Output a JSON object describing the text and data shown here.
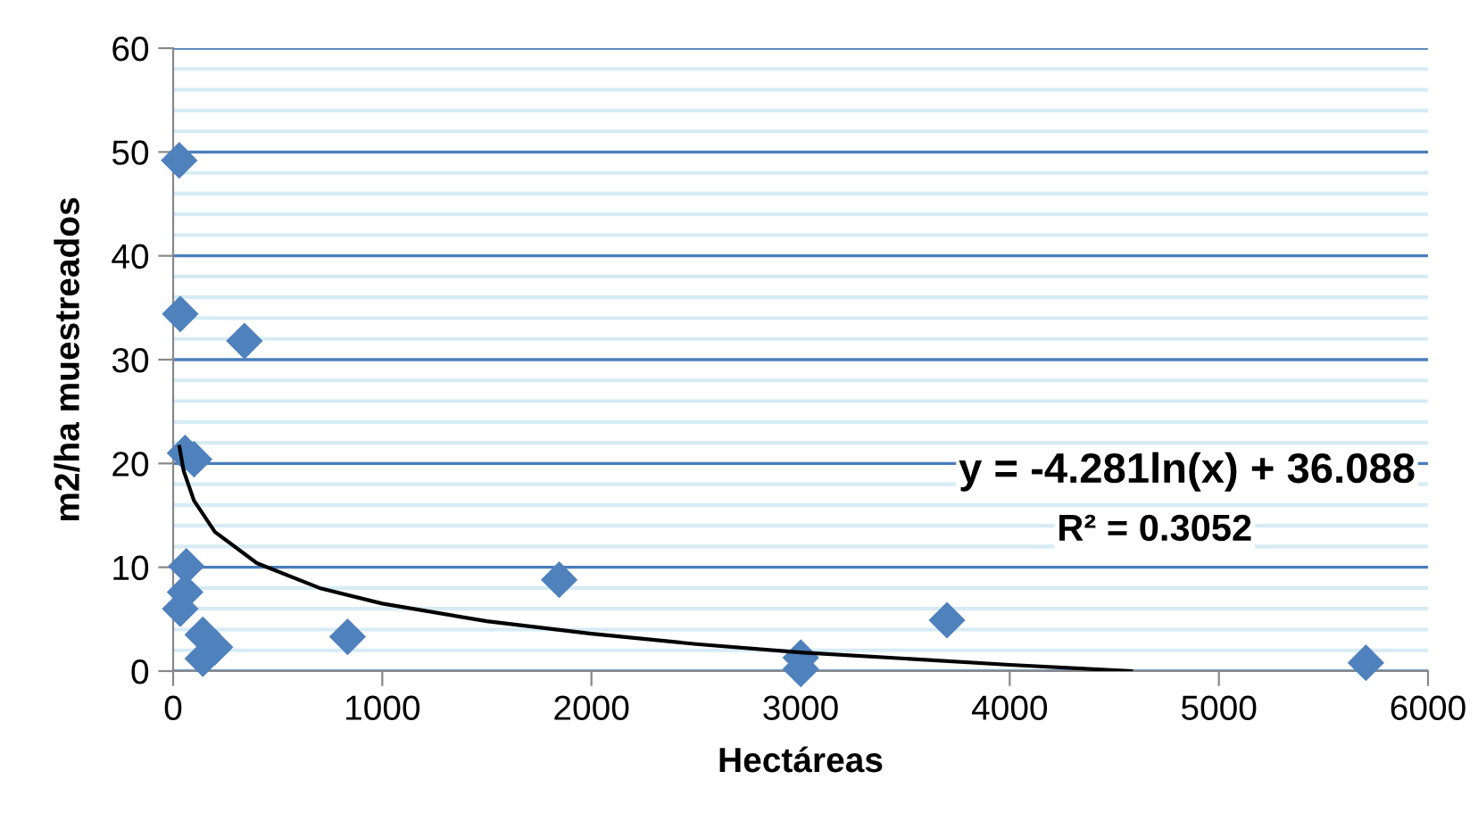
{
  "chart_data": {
    "type": "scatter",
    "xlabel": "Hectáreas",
    "ylabel": "m2/ha muestreados",
    "xlim": [
      0,
      6000
    ],
    "xticks": [
      0,
      1000,
      2000,
      3000,
      4000,
      5000,
      6000
    ],
    "ylim": [
      0,
      60
    ],
    "yticks": [
      0,
      10,
      20,
      30,
      40,
      50,
      60
    ],
    "grid": "y",
    "legend": false,
    "series": [
      {
        "color": "#4f81bd",
        "marker": "diamond",
        "x": [
          29,
          34,
          341,
          57,
          100,
          63,
          57,
          34,
          142,
          200,
          142,
          834,
          1846,
          3001,
          3001,
          3700,
          5703
        ],
        "values": [
          49.2,
          34.4,
          31.8,
          21.0,
          20.4,
          10.1,
          7.6,
          6.0,
          3.5,
          2.3,
          1.2,
          3.3,
          8.8,
          1.3,
          0.2,
          4.9,
          0.8
        ]
      },
      {
        "type": "line",
        "color": "#000000",
        "marker": "none",
        "line_style": "solid",
        "x": [
          30,
          50,
          100,
          200,
          400,
          700,
          1000,
          1500,
          2000,
          2500,
          3000,
          3500,
          4000,
          4580
        ],
        "values": [
          21.6,
          19.3,
          16.4,
          13.4,
          10.4,
          8.0,
          6.5,
          4.8,
          3.6,
          2.6,
          1.8,
          1.2,
          0.6,
          0.0
        ]
      }
    ],
    "annotations": [
      "y = -4.281ln(x) + 36.088",
      "R² = 0.3052"
    ]
  }
}
